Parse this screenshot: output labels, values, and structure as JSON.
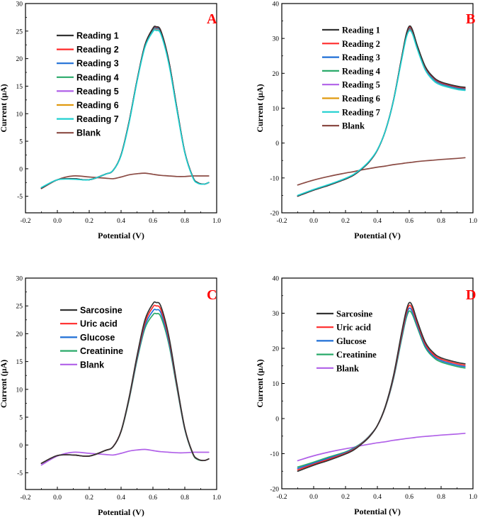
{
  "colors": {
    "black": "#333333",
    "red": "#ff2a2a",
    "blue": "#1f6fd6",
    "green": "#2aaa6a",
    "purple": "#b060e8",
    "orange": "#e09a10",
    "cyan": "#20d0d0",
    "brown": "#8b4b44"
  },
  "chart_data": [
    {
      "type": "line",
      "panel_label": "A",
      "xlabel": "Potential (V)",
      "ylabel": "Current (µA)",
      "xlim": [
        -0.2,
        1.0
      ],
      "ylim": [
        -8,
        30
      ],
      "xticks": [
        "-0.2",
        "0.0",
        "0.2",
        "0.4",
        "0.6",
        "0.8",
        "1.0"
      ],
      "yticks": [
        "-5",
        "0",
        "5",
        "10",
        "15",
        "20",
        "25",
        "30"
      ],
      "legend_position": "top-left",
      "x": [
        -0.1,
        0.0,
        0.1,
        0.2,
        0.3,
        0.35,
        0.4,
        0.45,
        0.5,
        0.55,
        0.6,
        0.62,
        0.65,
        0.7,
        0.75,
        0.8,
        0.85,
        0.88,
        0.92,
        0.95
      ],
      "series": [
        {
          "name": "Reading 1",
          "color": "black",
          "values": [
            -3.5,
            -2.0,
            -1.8,
            -2.0,
            -1.0,
            -0.3,
            2.5,
            8.5,
            16.0,
            22.5,
            25.5,
            25.8,
            25.0,
            19.5,
            11.0,
            3.0,
            -1.5,
            -2.5,
            -2.8,
            -2.5
          ]
        },
        {
          "name": "Reading 2",
          "color": "red",
          "values": [
            -3.5,
            -2.0,
            -1.8,
            -2.0,
            -1.0,
            -0.3,
            2.5,
            8.5,
            16.0,
            22.5,
            25.5,
            25.7,
            25.0,
            19.5,
            11.0,
            3.0,
            -1.5,
            -2.5,
            -2.8,
            -2.5
          ]
        },
        {
          "name": "Reading 3",
          "color": "blue",
          "values": [
            -3.5,
            -2.0,
            -1.8,
            -2.0,
            -1.0,
            -0.3,
            2.5,
            8.5,
            16.0,
            22.5,
            25.4,
            25.6,
            24.9,
            19.5,
            11.0,
            3.0,
            -1.5,
            -2.5,
            -2.8,
            -2.5
          ]
        },
        {
          "name": "Reading 4",
          "color": "green",
          "values": [
            -3.5,
            -2.0,
            -1.8,
            -2.0,
            -1.0,
            -0.3,
            2.5,
            8.5,
            16.0,
            22.5,
            25.3,
            25.5,
            24.8,
            19.4,
            11.0,
            3.0,
            -1.5,
            -2.5,
            -2.8,
            -2.5
          ]
        },
        {
          "name": "Reading 5",
          "color": "purple",
          "values": [
            -3.5,
            -2.0,
            -1.8,
            -2.0,
            -1.0,
            -0.3,
            2.5,
            8.5,
            16.0,
            22.4,
            25.2,
            25.4,
            24.7,
            19.3,
            10.9,
            3.0,
            -1.5,
            -2.5,
            -2.8,
            -2.5
          ]
        },
        {
          "name": "Reading 6",
          "color": "orange",
          "values": [
            -3.5,
            -2.0,
            -1.8,
            -2.0,
            -1.0,
            -0.3,
            2.5,
            8.5,
            16.0,
            22.3,
            25.1,
            25.3,
            24.6,
            19.2,
            10.9,
            3.0,
            -1.5,
            -2.5,
            -2.8,
            -2.5
          ]
        },
        {
          "name": "Reading 7",
          "color": "cyan",
          "values": [
            -3.4,
            -2.0,
            -1.9,
            -2.0,
            -1.0,
            -0.3,
            2.4,
            8.3,
            15.8,
            22.1,
            24.9,
            25.1,
            24.4,
            19.0,
            10.7,
            2.9,
            -1.6,
            -2.6,
            -2.8,
            -2.5
          ]
        },
        {
          "name": "Blank",
          "color": "brown",
          "values": [
            -3.6,
            -2.0,
            -1.3,
            -1.5,
            -1.7,
            -1.8,
            -1.5,
            -1.1,
            -0.9,
            -0.8,
            -1.0,
            -1.1,
            -1.2,
            -1.3,
            -1.4,
            -1.4,
            -1.3,
            -1.3,
            -1.3,
            -1.3
          ]
        }
      ]
    },
    {
      "type": "line",
      "panel_label": "B",
      "xlabel": "Potential (V)",
      "ylabel": "Current (µA)",
      "xlim": [
        -0.2,
        1.0
      ],
      "ylim": [
        -20,
        40
      ],
      "xticks": [
        "-0.2",
        "0.0",
        "0.2",
        "0.4",
        "0.6",
        "0.8",
        "1.0"
      ],
      "yticks": [
        "-20",
        "-10",
        "0",
        "10",
        "20",
        "30",
        "40"
      ],
      "legend_position": "top-center",
      "x": [
        -0.1,
        0.0,
        0.1,
        0.2,
        0.25,
        0.3,
        0.35,
        0.4,
        0.45,
        0.5,
        0.55,
        0.58,
        0.6,
        0.62,
        0.65,
        0.7,
        0.75,
        0.8,
        0.9,
        0.95
      ],
      "series": [
        {
          "name": "Reading 1",
          "color": "black",
          "values": [
            -15.2,
            -13.5,
            -12.0,
            -10.3,
            -9.2,
            -7.5,
            -5.3,
            -2.0,
            3.5,
            12.0,
            24.0,
            31.0,
            33.5,
            32.5,
            28.0,
            22.0,
            19.0,
            17.5,
            16.3,
            16.0
          ]
        },
        {
          "name": "Reading 2",
          "color": "red",
          "values": [
            -15.2,
            -13.5,
            -12.0,
            -10.3,
            -9.2,
            -7.5,
            -5.3,
            -2.0,
            3.5,
            12.0,
            24.0,
            30.8,
            33.2,
            32.2,
            27.8,
            21.8,
            18.8,
            17.3,
            16.1,
            15.8
          ]
        },
        {
          "name": "Reading 3",
          "color": "blue",
          "values": [
            -15.2,
            -13.5,
            -12.0,
            -10.3,
            -9.2,
            -7.5,
            -5.3,
            -2.0,
            3.5,
            12.0,
            23.9,
            30.6,
            33.0,
            32.0,
            27.6,
            21.6,
            18.6,
            17.1,
            15.9,
            15.6
          ]
        },
        {
          "name": "Reading 4",
          "color": "green",
          "values": [
            -15.2,
            -13.5,
            -12.0,
            -10.3,
            -9.2,
            -7.5,
            -5.3,
            -2.0,
            3.5,
            12.0,
            23.8,
            30.5,
            32.8,
            31.8,
            27.5,
            21.5,
            18.5,
            17.0,
            15.8,
            15.5
          ]
        },
        {
          "name": "Reading 5",
          "color": "purple",
          "values": [
            -15.2,
            -13.5,
            -12.0,
            -10.3,
            -9.2,
            -7.5,
            -5.3,
            -2.0,
            3.5,
            12.0,
            23.7,
            30.4,
            32.7,
            31.7,
            27.4,
            21.4,
            18.4,
            16.9,
            15.7,
            15.4
          ]
        },
        {
          "name": "Reading 6",
          "color": "orange",
          "values": [
            -15.2,
            -13.5,
            -12.0,
            -10.3,
            -9.2,
            -7.5,
            -5.3,
            -2.0,
            3.5,
            12.0,
            23.6,
            30.3,
            32.6,
            31.6,
            27.3,
            21.3,
            18.3,
            16.8,
            15.6,
            15.3
          ]
        },
        {
          "name": "Reading 7",
          "color": "cyan",
          "values": [
            -15.0,
            -13.3,
            -11.8,
            -10.1,
            -9.0,
            -7.3,
            -5.1,
            -1.9,
            3.5,
            11.9,
            23.4,
            30.0,
            32.2,
            31.3,
            27.0,
            21.0,
            18.0,
            16.6,
            15.4,
            15.1
          ]
        },
        {
          "name": "Blank",
          "color": "brown",
          "values": [
            -12.0,
            -10.6,
            -9.5,
            -8.6,
            -8.2,
            -7.7,
            -7.3,
            -6.9,
            -6.6,
            -6.2,
            -5.9,
            -5.7,
            -5.6,
            -5.5,
            -5.3,
            -5.1,
            -4.9,
            -4.7,
            -4.4,
            -4.2
          ]
        }
      ]
    },
    {
      "type": "line",
      "panel_label": "C",
      "xlabel": "Potential (V)",
      "ylabel": "Current (µA)",
      "xlim": [
        -0.2,
        1.0
      ],
      "ylim": [
        -8,
        30
      ],
      "xticks": [
        "-0.2",
        "0.0",
        "0.2",
        "0.4",
        "0.6",
        "0.8",
        "1.0"
      ],
      "yticks": [
        "-5",
        "0",
        "5",
        "10",
        "15",
        "20",
        "25",
        "30"
      ],
      "legend_position": "top-left",
      "x": [
        -0.1,
        0.0,
        0.1,
        0.2,
        0.3,
        0.35,
        0.4,
        0.45,
        0.5,
        0.55,
        0.6,
        0.62,
        0.65,
        0.7,
        0.75,
        0.8,
        0.85,
        0.88,
        0.92,
        0.95
      ],
      "series": [
        {
          "name": "Sarcosine",
          "color": "black",
          "values": [
            -3.3,
            -1.9,
            -1.8,
            -2.0,
            -1.0,
            -0.3,
            2.5,
            8.5,
            16.0,
            22.5,
            25.4,
            25.6,
            24.9,
            19.5,
            11.0,
            3.0,
            -1.5,
            -2.5,
            -2.8,
            -2.5
          ]
        },
        {
          "name": "Uric acid",
          "color": "red",
          "values": [
            -3.3,
            -1.9,
            -1.8,
            -2.0,
            -1.0,
            -0.3,
            2.5,
            8.4,
            15.8,
            22.0,
            24.8,
            25.0,
            24.3,
            19.1,
            10.8,
            3.0,
            -1.5,
            -2.5,
            -2.8,
            -2.5
          ]
        },
        {
          "name": "Glucose",
          "color": "blue",
          "values": [
            -3.3,
            -1.9,
            -1.8,
            -2.0,
            -1.0,
            -0.3,
            2.5,
            8.3,
            15.5,
            21.5,
            24.1,
            24.3,
            23.7,
            18.6,
            10.6,
            2.9,
            -1.5,
            -2.5,
            -2.8,
            -2.5
          ]
        },
        {
          "name": "Creatinine",
          "color": "green",
          "values": [
            -3.3,
            -1.9,
            -1.8,
            -2.0,
            -1.0,
            -0.3,
            2.4,
            8.1,
            15.2,
            21.0,
            23.4,
            23.6,
            23.0,
            18.1,
            10.3,
            2.8,
            -1.6,
            -2.6,
            -2.8,
            -2.5
          ]
        },
        {
          "name": "Blank",
          "color": "purple",
          "values": [
            -3.6,
            -2.0,
            -1.3,
            -1.5,
            -1.7,
            -1.8,
            -1.5,
            -1.1,
            -0.9,
            -0.8,
            -1.0,
            -1.1,
            -1.2,
            -1.3,
            -1.4,
            -1.4,
            -1.3,
            -1.3,
            -1.3,
            -1.3
          ]
        }
      ]
    },
    {
      "type": "line",
      "panel_label": "D",
      "xlabel": "Potential (V)",
      "ylabel": "Current (µA)",
      "xlim": [
        -0.2,
        1.0
      ],
      "ylim": [
        -20,
        40
      ],
      "xticks": [
        "-0.2",
        "0.0",
        "0.2",
        "0.4",
        "0.6",
        "0.8",
        "1.0"
      ],
      "yticks": [
        "-20",
        "-10",
        "0",
        "10",
        "20",
        "30",
        "40"
      ],
      "legend_position": "top-center",
      "x": [
        -0.1,
        0.0,
        0.1,
        0.2,
        0.25,
        0.3,
        0.35,
        0.4,
        0.45,
        0.5,
        0.55,
        0.58,
        0.6,
        0.62,
        0.65,
        0.7,
        0.75,
        0.8,
        0.9,
        0.95
      ],
      "series": [
        {
          "name": "Sarcosine",
          "color": "black",
          "values": [
            -15.0,
            -13.3,
            -11.8,
            -10.1,
            -9.0,
            -7.3,
            -5.2,
            -2.0,
            3.5,
            12.0,
            24.0,
            30.5,
            33.0,
            32.0,
            27.8,
            21.8,
            18.8,
            17.3,
            16.0,
            15.6
          ]
        },
        {
          "name": "Uric acid",
          "color": "red",
          "values": [
            -14.6,
            -13.0,
            -11.5,
            -9.9,
            -8.8,
            -7.2,
            -5.1,
            -2.0,
            3.4,
            11.7,
            23.4,
            29.8,
            32.2,
            31.2,
            27.2,
            21.3,
            18.3,
            16.9,
            15.6,
            15.2
          ]
        },
        {
          "name": "Glucose",
          "color": "blue",
          "values": [
            -14.2,
            -12.7,
            -11.2,
            -9.7,
            -8.6,
            -7.1,
            -5.0,
            -2.0,
            3.3,
            11.4,
            22.8,
            29.1,
            31.4,
            30.4,
            26.6,
            20.8,
            17.9,
            16.5,
            15.2,
            14.8
          ]
        },
        {
          "name": "Creatinine",
          "color": "green",
          "values": [
            -13.8,
            -12.4,
            -10.9,
            -9.5,
            -8.4,
            -7.0,
            -4.9,
            -2.0,
            3.2,
            11.1,
            22.2,
            28.4,
            30.6,
            29.6,
            26.0,
            20.3,
            17.5,
            16.1,
            14.8,
            14.4
          ]
        },
        {
          "name": "Blank",
          "color": "purple",
          "values": [
            -12.0,
            -10.6,
            -9.5,
            -8.6,
            -8.2,
            -7.7,
            -7.3,
            -6.9,
            -6.6,
            -6.2,
            -5.9,
            -5.7,
            -5.6,
            -5.5,
            -5.3,
            -5.1,
            -4.9,
            -4.7,
            -4.4,
            -4.2
          ]
        }
      ]
    }
  ]
}
